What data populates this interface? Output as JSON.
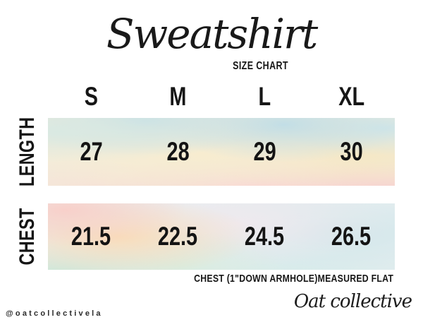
{
  "title": "Sweatshirt",
  "subtitle": "SIZE CHART",
  "chart_data": {
    "type": "table",
    "title": "Sweatshirt",
    "subtitle": "SIZE CHART",
    "categories": [
      "S",
      "M",
      "L",
      "XL"
    ],
    "series": [
      {
        "name": "LENGTH",
        "values": [
          27,
          28,
          29,
          30
        ]
      },
      {
        "name": "CHEST",
        "values": [
          21.5,
          22.5,
          24.5,
          26.5
        ]
      }
    ],
    "note": "CHEST (1\"DOWN ARMHOLE)MEASURED FLAT",
    "units": "inches"
  },
  "footer": {
    "handle": "@oatcollectivela",
    "brand": "Oat collective"
  },
  "colors": {
    "text": "#161616",
    "background": "#ffffff",
    "watercolor_blue": "#c2dee6",
    "watercolor_cream": "#f7ecd0",
    "watercolor_pink": "#f9d0d6",
    "watercolor_peach": "#f9dcb9",
    "watercolor_mint": "#cde7d8"
  }
}
